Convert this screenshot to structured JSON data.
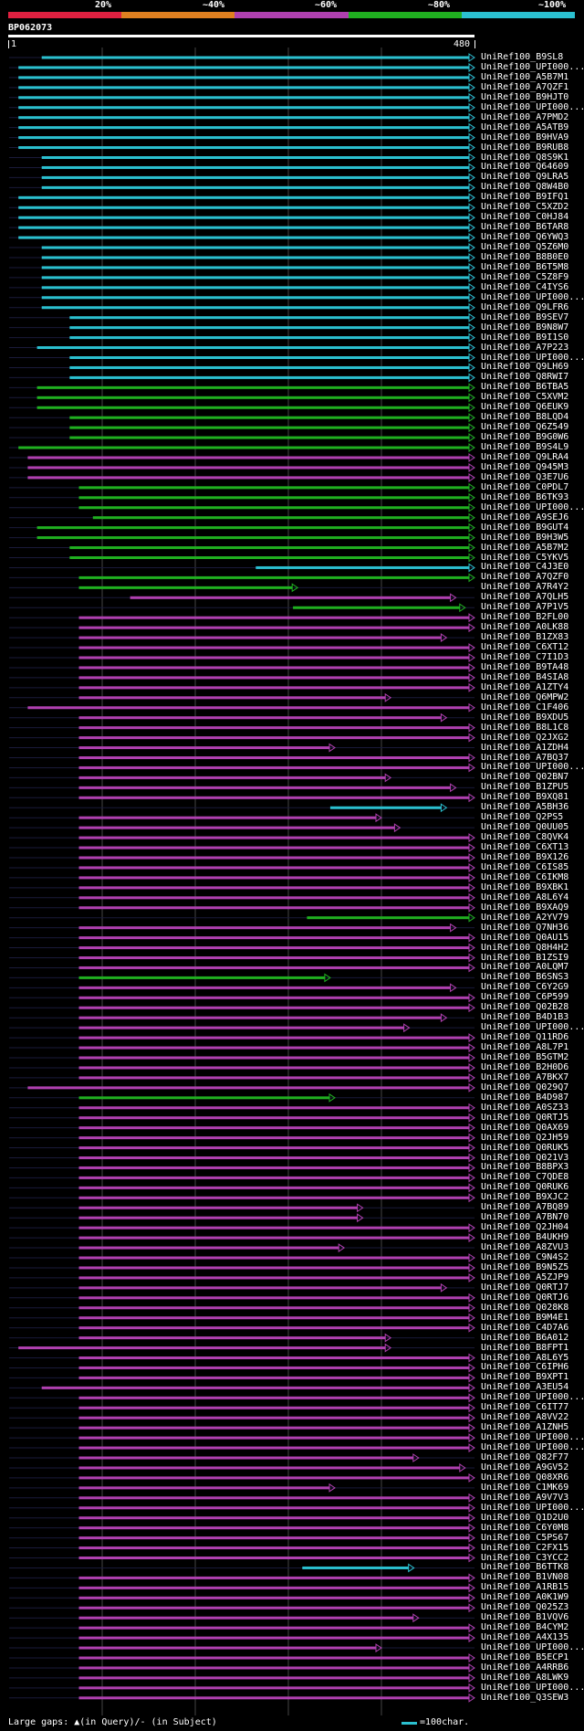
{
  "colors": {
    "background": "#000000",
    "text": "#ffffff",
    "cyan": "#2bc0d0",
    "green": "#20b020",
    "magenta": "#b040b0",
    "red": "#e02040",
    "orange": "#e08020",
    "grid": "#444444",
    "gap": "#ffff80"
  },
  "legend": {
    "segments": [
      "red",
      "orange",
      "magenta",
      "green",
      "cyan"
    ],
    "labels": [
      "20%",
      "~40%",
      "~60%",
      "~80%",
      "~100%"
    ]
  },
  "query": {
    "name": "BP062073",
    "start": "1",
    "end": "480"
  },
  "hits": [
    {
      "n": "UniRef100_B9SL8",
      "c": "cyan",
      "s": 0.07,
      "e": 1.0
    },
    {
      "n": "UniRef100_UPI000...",
      "c": "cyan",
      "s": 0.02,
      "e": 1.0
    },
    {
      "n": "UniRef100_A5B7M1",
      "c": "cyan",
      "s": 0.02,
      "e": 1.0
    },
    {
      "n": "UniRef100_A7QZF1",
      "c": "cyan",
      "s": 0.02,
      "e": 1.0
    },
    {
      "n": "UniRef100_B9HJT0",
      "c": "cyan",
      "s": 0.02,
      "e": 1.0
    },
    {
      "n": "UniRef100_UPI000...",
      "c": "cyan",
      "s": 0.02,
      "e": 1.0
    },
    {
      "n": "UniRef100_A7PMD2",
      "c": "cyan",
      "s": 0.02,
      "e": 1.0
    },
    {
      "n": "UniRef100_A5ATB9",
      "c": "cyan",
      "s": 0.02,
      "e": 1.0
    },
    {
      "n": "UniRef100_B9HVA9",
      "c": "cyan",
      "s": 0.02,
      "e": 1.0
    },
    {
      "n": "UniRef100_B9RUB8",
      "c": "cyan",
      "s": 0.02,
      "e": 1.0
    },
    {
      "n": "UniRef100_Q8S9K1",
      "c": "cyan",
      "s": 0.07,
      "e": 1.0
    },
    {
      "n": "UniRef100_Q64609",
      "c": "cyan",
      "s": 0.07,
      "e": 1.0
    },
    {
      "n": "UniRef100_Q9LRA5",
      "c": "cyan",
      "s": 0.07,
      "e": 1.0
    },
    {
      "n": "UniRef100_Q8W4B0",
      "c": "cyan",
      "s": 0.07,
      "e": 1.0
    },
    {
      "n": "UniRef100_B9IFQ1",
      "c": "cyan",
      "s": 0.02,
      "e": 1.0
    },
    {
      "n": "UniRef100_C5XZD2",
      "c": "cyan",
      "s": 0.02,
      "e": 1.0
    },
    {
      "n": "UniRef100_C0HJ84",
      "c": "cyan",
      "s": 0.02,
      "e": 1.0
    },
    {
      "n": "UniRef100_B6TAR8",
      "c": "cyan",
      "s": 0.02,
      "e": 1.0
    },
    {
      "n": "UniRef100_Q6YWQ3",
      "c": "cyan",
      "s": 0.02,
      "e": 1.0
    },
    {
      "n": "UniRef100_Q5Z6M0",
      "c": "cyan",
      "s": 0.07,
      "e": 1.0
    },
    {
      "n": "UniRef100_B8B0E0",
      "c": "cyan",
      "s": 0.07,
      "e": 1.0
    },
    {
      "n": "UniRef100_B6T5M8",
      "c": "cyan",
      "s": 0.07,
      "e": 1.0
    },
    {
      "n": "UniRef100_C5Z8F9",
      "c": "cyan",
      "s": 0.07,
      "e": 1.0
    },
    {
      "n": "UniRef100_C4IYS6",
      "c": "cyan",
      "s": 0.07,
      "e": 1.0
    },
    {
      "n": "UniRef100_UPI000...",
      "c": "cyan",
      "s": 0.07,
      "e": 1.0
    },
    {
      "n": "UniRef100_Q9LFR6",
      "c": "cyan",
      "s": 0.07,
      "e": 1.0
    },
    {
      "n": "UniRef100_B9SEV7",
      "c": "cyan",
      "s": 0.13,
      "e": 1.0
    },
    {
      "n": "UniRef100_B9N8W7",
      "c": "cyan",
      "s": 0.13,
      "e": 1.0
    },
    {
      "n": "UniRef100_B9I1S0",
      "c": "cyan",
      "s": 0.13,
      "e": 1.0
    },
    {
      "n": "UniRef100_A7P223",
      "c": "cyan",
      "s": 0.06,
      "e": 1.0
    },
    {
      "n": "UniRef100_UPI000...",
      "c": "cyan",
      "s": 0.13,
      "e": 1.0
    },
    {
      "n": "UniRef100_Q9LH69",
      "c": "cyan",
      "s": 0.13,
      "e": 1.0
    },
    {
      "n": "UniRef100_Q8RWI7",
      "c": "cyan",
      "s": 0.13,
      "e": 1.0
    },
    {
      "n": "UniRef100_B6TBA5",
      "c": "green",
      "s": 0.06,
      "e": 1.0
    },
    {
      "n": "UniRef100_C5XVM2",
      "c": "green",
      "s": 0.06,
      "e": 1.0
    },
    {
      "n": "UniRef100_Q6EUK9",
      "c": "green",
      "s": 0.06,
      "e": 1.0
    },
    {
      "n": "UniRef100_B8LQD4",
      "c": "green",
      "s": 0.13,
      "e": 1.0
    },
    {
      "n": "UniRef100_Q6Z549",
      "c": "green",
      "s": 0.13,
      "e": 1.0
    },
    {
      "n": "UniRef100_B9G0W6",
      "c": "green",
      "s": 0.13,
      "e": 1.0
    },
    {
      "n": "UniRef100_B9S4L9",
      "c": "green",
      "s": 0.02,
      "e": 1.0
    },
    {
      "n": "UniRef100_Q9LRA4",
      "c": "magenta",
      "s": 0.04,
      "e": 1.0
    },
    {
      "n": "UniRef100_Q945M3",
      "c": "magenta",
      "s": 0.04,
      "e": 1.0
    },
    {
      "n": "UniRef100_Q3E7U6",
      "c": "magenta",
      "s": 0.04,
      "e": 1.0
    },
    {
      "n": "UniRef100_C0PDL7",
      "c": "green",
      "s": 0.15,
      "e": 1.0
    },
    {
      "n": "UniRef100_B6TK93",
      "c": "green",
      "s": 0.15,
      "e": 1.0
    },
    {
      "n": "UniRef100_UPI000...",
      "c": "green",
      "s": 0.15,
      "e": 1.0
    },
    {
      "n": "UniRef100_A9SEJ6",
      "c": "green",
      "s": 0.18,
      "e": 1.0
    },
    {
      "n": "UniRef100_B9GUT4",
      "c": "green",
      "s": 0.06,
      "e": 1.0
    },
    {
      "n": "UniRef100_B9H3W5",
      "c": "green",
      "s": 0.06,
      "e": 1.0
    },
    {
      "n": "UniRef100_A5B7M2",
      "c": "green",
      "s": 0.13,
      "e": 1.0
    },
    {
      "n": "UniRef100_C5YKV5",
      "c": "green",
      "s": 0.13,
      "e": 1.0
    },
    {
      "n": "UniRef100_C4J3E0",
      "c": "cyan",
      "s": 0.53,
      "e": 1.0
    },
    {
      "n": "UniRef100_A7QZF0",
      "c": "green",
      "s": 0.15,
      "e": 1.0
    },
    {
      "n": "UniRef100_A7R4Y2",
      "c": "green",
      "s": 0.15,
      "e": 0.62
    },
    {
      "n": "UniRef100_A7QLH5",
      "c": "magenta",
      "s": 0.26,
      "e": 0.96
    },
    {
      "n": "UniRef100_A7P1V5",
      "c": "green",
      "s": 0.61,
      "e": 0.98
    },
    {
      "n": "UniRef100_B2FL00",
      "c": "magenta",
      "s": 0.15,
      "e": 1.0
    },
    {
      "n": "UniRef100_A0LK88",
      "c": "magenta",
      "s": 0.15,
      "e": 1.0
    },
    {
      "n": "UniRef100_B1ZX83",
      "c": "magenta",
      "s": 0.15,
      "e": 0.94
    },
    {
      "n": "UniRef100_C6XT12",
      "c": "magenta",
      "s": 0.15,
      "e": 1.0
    },
    {
      "n": "UniRef100_C7I1D3",
      "c": "magenta",
      "s": 0.15,
      "e": 1.0
    },
    {
      "n": "UniRef100_B9TA48",
      "c": "magenta",
      "s": 0.15,
      "e": 1.0
    },
    {
      "n": "UniRef100_B4SIA8",
      "c": "magenta",
      "s": 0.15,
      "e": 1.0
    },
    {
      "n": "UniRef100_A1ZTY4",
      "c": "magenta",
      "s": 0.15,
      "e": 1.0
    },
    {
      "n": "UniRef100_Q6MPW2",
      "c": "magenta",
      "s": 0.15,
      "e": 0.82
    },
    {
      "n": "UniRef100_C1F406",
      "c": "magenta",
      "s": 0.04,
      "e": 1.0
    },
    {
      "n": "UniRef100_B9XDU5",
      "c": "magenta",
      "s": 0.15,
      "e": 0.94
    },
    {
      "n": "UniRef100_B8L1C8",
      "c": "magenta",
      "s": 0.15,
      "e": 1.0
    },
    {
      "n": "UniRef100_Q2JXG2",
      "c": "magenta",
      "s": 0.15,
      "e": 1.0
    },
    {
      "n": "UniRef100_A1ZDH4",
      "c": "magenta",
      "s": 0.15,
      "e": 0.7
    },
    {
      "n": "UniRef100_A7BQ37",
      "c": "magenta",
      "s": 0.15,
      "e": 1.0
    },
    {
      "n": "UniRef100_UPI000...",
      "c": "magenta",
      "s": 0.15,
      "e": 1.0
    },
    {
      "n": "UniRef100_Q02BN7",
      "c": "magenta",
      "s": 0.15,
      "e": 0.82
    },
    {
      "n": "UniRef100_B1ZPU5",
      "c": "magenta",
      "s": 0.15,
      "e": 0.96
    },
    {
      "n": "UniRef100_B9XQ81",
      "c": "magenta",
      "s": 0.15,
      "e": 1.0
    },
    {
      "n": "UniRef100_A5BH36",
      "c": "cyan",
      "s": 0.69,
      "e": 0.94
    },
    {
      "n": "UniRef100_Q2PS5",
      "c": "magenta",
      "s": 0.15,
      "e": 0.8
    },
    {
      "n": "UniRef100_Q0UU05",
      "c": "magenta",
      "s": 0.15,
      "e": 0.84
    },
    {
      "n": "UniRef100_C8QVK4",
      "c": "magenta",
      "s": 0.15,
      "e": 1.0
    },
    {
      "n": "UniRef100_C6XT13",
      "c": "magenta",
      "s": 0.15,
      "e": 1.0
    },
    {
      "n": "UniRef100_B9X126",
      "c": "magenta",
      "s": 0.15,
      "e": 1.0
    },
    {
      "n": "UniRef100_C6IS85",
      "c": "magenta",
      "s": 0.15,
      "e": 1.0
    },
    {
      "n": "UniRef100_C6IKM8",
      "c": "magenta",
      "s": 0.15,
      "e": 1.0
    },
    {
      "n": "UniRef100_B9XBK1",
      "c": "magenta",
      "s": 0.15,
      "e": 1.0
    },
    {
      "n": "UniRef100_A8L6Y4",
      "c": "magenta",
      "s": 0.15,
      "e": 1.0
    },
    {
      "n": "UniRef100_B9XAQ9",
      "c": "magenta",
      "s": 0.15,
      "e": 1.0
    },
    {
      "n": "UniRef100_A2YV79",
      "c": "green",
      "s": 0.64,
      "e": 1.0
    },
    {
      "n": "UniRef100_Q7NH36",
      "c": "magenta",
      "s": 0.15,
      "e": 0.96
    },
    {
      "n": "UniRef100_Q0AU15",
      "c": "magenta",
      "s": 0.15,
      "e": 1.0
    },
    {
      "n": "UniRef100_Q8H4H2",
      "c": "magenta",
      "s": 0.15,
      "e": 1.0
    },
    {
      "n": "UniRef100_B1ZSI9",
      "c": "magenta",
      "s": 0.15,
      "e": 1.0
    },
    {
      "n": "UniRef100_A0LQM7",
      "c": "magenta",
      "s": 0.15,
      "e": 1.0
    },
    {
      "n": "UniRef100_B6SNS3",
      "c": "green",
      "s": 0.15,
      "e": 0.69
    },
    {
      "n": "UniRef100_C6Y2G9",
      "c": "magenta",
      "s": 0.15,
      "e": 0.96
    },
    {
      "n": "UniRef100_C6P599",
      "c": "magenta",
      "s": 0.15,
      "e": 1.0
    },
    {
      "n": "UniRef100_Q02B28",
      "c": "magenta",
      "s": 0.15,
      "e": 1.0
    },
    {
      "n": "UniRef100_B4D1B3",
      "c": "magenta",
      "s": 0.15,
      "e": 0.94
    },
    {
      "n": "UniRef100_UPI000...",
      "c": "magenta",
      "s": 0.15,
      "e": 0.86
    },
    {
      "n": "UniRef100_Q11RD6",
      "c": "magenta",
      "s": 0.15,
      "e": 1.0
    },
    {
      "n": "UniRef100_A8L7P1",
      "c": "magenta",
      "s": 0.15,
      "e": 1.0
    },
    {
      "n": "UniRef100_B5GTM2",
      "c": "magenta",
      "s": 0.15,
      "e": 1.0
    },
    {
      "n": "UniRef100_B2H0D6",
      "c": "magenta",
      "s": 0.15,
      "e": 1.0
    },
    {
      "n": "UniRef100_A7BKX7",
      "c": "magenta",
      "s": 0.15,
      "e": 1.0
    },
    {
      "n": "UniRef100_Q029Q7",
      "c": "magenta",
      "s": 0.04,
      "e": 1.0
    },
    {
      "n": "UniRef100_B4D987",
      "c": "green",
      "s": 0.15,
      "e": 0.7
    },
    {
      "n": "UniRef100_A0SZ33",
      "c": "magenta",
      "s": 0.15,
      "e": 1.0
    },
    {
      "n": "UniRef100_Q0RTJ5",
      "c": "magenta",
      "s": 0.15,
      "e": 1.0
    },
    {
      "n": "UniRef100_Q0AX69",
      "c": "magenta",
      "s": 0.15,
      "e": 1.0
    },
    {
      "n": "UniRef100_Q2JH59",
      "c": "magenta",
      "s": 0.15,
      "e": 1.0
    },
    {
      "n": "UniRef100_Q0RUK5",
      "c": "magenta",
      "s": 0.15,
      "e": 1.0
    },
    {
      "n": "UniRef100_Q021V3",
      "c": "magenta",
      "s": 0.15,
      "e": 1.0
    },
    {
      "n": "UniRef100_B8BPX3",
      "c": "magenta",
      "s": 0.15,
      "e": 1.0
    },
    {
      "n": "UniRef100_C7QDE8",
      "c": "magenta",
      "s": 0.15,
      "e": 1.0
    },
    {
      "n": "UniRef100_Q0RUK6",
      "c": "magenta",
      "s": 0.15,
      "e": 1.0
    },
    {
      "n": "UniRef100_B9XJC2",
      "c": "magenta",
      "s": 0.15,
      "e": 1.0
    },
    {
      "n": "UniRef100_A7BQ89",
      "c": "magenta",
      "s": 0.15,
      "e": 0.76
    },
    {
      "n": "UniRef100_A7BN70",
      "c": "magenta",
      "s": 0.15,
      "e": 0.76
    },
    {
      "n": "UniRef100_Q2JH04",
      "c": "magenta",
      "s": 0.15,
      "e": 1.0
    },
    {
      "n": "UniRef100_B4UKH9",
      "c": "magenta",
      "s": 0.15,
      "e": 1.0
    },
    {
      "n": "UniRef100_A8ZVU3",
      "c": "magenta",
      "s": 0.15,
      "e": 0.72
    },
    {
      "n": "UniRef100_C9N4S2",
      "c": "magenta",
      "s": 0.15,
      "e": 1.0
    },
    {
      "n": "UniRef100_B9N5Z5",
      "c": "magenta",
      "s": 0.15,
      "e": 1.0
    },
    {
      "n": "UniRef100_A5ZJP9",
      "c": "magenta",
      "s": 0.15,
      "e": 1.0
    },
    {
      "n": "UniRef100_Q0RTJ7",
      "c": "magenta",
      "s": 0.15,
      "e": 0.94
    },
    {
      "n": "UniRef100_Q0RTJ6",
      "c": "magenta",
      "s": 0.15,
      "e": 1.0
    },
    {
      "n": "UniRef100_Q028K8",
      "c": "magenta",
      "s": 0.15,
      "e": 1.0
    },
    {
      "n": "UniRef100_B9M4E1",
      "c": "magenta",
      "s": 0.15,
      "e": 1.0
    },
    {
      "n": "UniRef100_C4D7A6",
      "c": "magenta",
      "s": 0.15,
      "e": 1.0
    },
    {
      "n": "UniRef100_B6A012",
      "c": "magenta",
      "s": 0.15,
      "e": 0.82
    },
    {
      "n": "UniRef100_B8FPT1",
      "c": "magenta",
      "s": 0.02,
      "e": 0.82
    },
    {
      "n": "UniRef100_A8L6Y5",
      "c": "magenta",
      "s": 0.15,
      "e": 1.0
    },
    {
      "n": "UniRef100_C6IPH6",
      "c": "magenta",
      "s": 0.15,
      "e": 1.0
    },
    {
      "n": "UniRef100_B9XPT1",
      "c": "magenta",
      "s": 0.15,
      "e": 1.0
    },
    {
      "n": "UniRef100_A3EU54",
      "c": "magenta",
      "s": 0.07,
      "e": 1.0
    },
    {
      "n": "UniRef100_UPI000...",
      "c": "magenta",
      "s": 0.15,
      "e": 1.0
    },
    {
      "n": "UniRef100_C6IT77",
      "c": "magenta",
      "s": 0.15,
      "e": 1.0
    },
    {
      "n": "UniRef100_A8VV22",
      "c": "magenta",
      "s": 0.15,
      "e": 1.0
    },
    {
      "n": "UniRef100_A1ZNH5",
      "c": "magenta",
      "s": 0.15,
      "e": 1.0
    },
    {
      "n": "UniRef100_UPI000...",
      "c": "magenta",
      "s": 0.15,
      "e": 1.0
    },
    {
      "n": "UniRef100_UPI000...",
      "c": "magenta",
      "s": 0.15,
      "e": 1.0
    },
    {
      "n": "UniRef100_Q82F77",
      "c": "magenta",
      "s": 0.15,
      "e": 0.88
    },
    {
      "n": "UniRef100_A9GV52",
      "c": "magenta",
      "s": 0.15,
      "e": 0.98
    },
    {
      "n": "UniRef100_Q08XR6",
      "c": "magenta",
      "s": 0.15,
      "e": 1.0
    },
    {
      "n": "UniRef100_C1MK69",
      "c": "magenta",
      "s": 0.15,
      "e": 0.7
    },
    {
      "n": "UniRef100_A9V7V3",
      "c": "magenta",
      "s": 0.15,
      "e": 1.0
    },
    {
      "n": "UniRef100_UPI000...",
      "c": "magenta",
      "s": 0.15,
      "e": 1.0
    },
    {
      "n": "UniRef100_Q1D2U0",
      "c": "magenta",
      "s": 0.15,
      "e": 1.0
    },
    {
      "n": "UniRef100_C6Y0M8",
      "c": "magenta",
      "s": 0.15,
      "e": 1.0
    },
    {
      "n": "UniRef100_C5PS67",
      "c": "magenta",
      "s": 0.15,
      "e": 1.0
    },
    {
      "n": "UniRef100_C2FX15",
      "c": "magenta",
      "s": 0.15,
      "e": 1.0
    },
    {
      "n": "UniRef100_C3YCC2",
      "c": "magenta",
      "s": 0.15,
      "e": 1.0
    },
    {
      "n": "UniRef100_B6TTK8",
      "c": "cyan",
      "s": 0.63,
      "e": 0.87
    },
    {
      "n": "UniRef100_B1VN08",
      "c": "magenta",
      "s": 0.15,
      "e": 1.0
    },
    {
      "n": "UniRef100_A1RB15",
      "c": "magenta",
      "s": 0.15,
      "e": 1.0
    },
    {
      "n": "UniRef100_A0K1W9",
      "c": "magenta",
      "s": 0.15,
      "e": 1.0
    },
    {
      "n": "UniRef100_Q025Z3",
      "c": "magenta",
      "s": 0.15,
      "e": 1.0
    },
    {
      "n": "UniRef100_B1VQV6",
      "c": "magenta",
      "s": 0.15,
      "e": 0.88
    },
    {
      "n": "UniRef100_B4CYM2",
      "c": "magenta",
      "s": 0.15,
      "e": 1.0
    },
    {
      "n": "UniRef100_A4X135",
      "c": "magenta",
      "s": 0.15,
      "e": 1.0
    },
    {
      "n": "UniRef100_UPI000...",
      "c": "magenta",
      "s": 0.15,
      "e": 0.8
    },
    {
      "n": "UniRef100_B5ECP1",
      "c": "magenta",
      "s": 0.15,
      "e": 1.0
    },
    {
      "n": "UniRef100_A4RRB6",
      "c": "magenta",
      "s": 0.15,
      "e": 1.0
    },
    {
      "n": "UniRef100_A8LWK9",
      "c": "magenta",
      "s": 0.15,
      "e": 1.0
    },
    {
      "n": "UniRef100_UPI000...",
      "c": "magenta",
      "s": 0.15,
      "e": 1.0
    },
    {
      "n": "UniRef100_Q3SEW3",
      "c": "magenta",
      "s": 0.15,
      "e": 1.0
    }
  ],
  "footer": {
    "gaps_label": "Large gaps: ▲(in Query)/- (in Subject)",
    "scale_label": "=100char."
  }
}
